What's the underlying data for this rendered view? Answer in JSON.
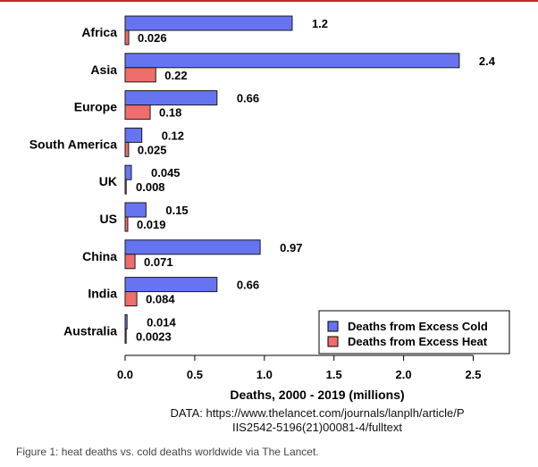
{
  "chart_data": {
    "type": "bar",
    "orientation": "horizontal",
    "categories": [
      "Africa",
      "Asia",
      "Europe",
      "South America",
      "UK",
      "US",
      "China",
      "India",
      "Australia"
    ],
    "series": [
      {
        "name": "Deaths from Excess Cold",
        "color": "#6674f2",
        "values": [
          1.2,
          2.4,
          0.66,
          0.12,
          0.045,
          0.15,
          0.97,
          0.66,
          0.014
        ],
        "labels": [
          "1.2",
          "2.4",
          "0.66",
          "0.12",
          "0.045",
          "0.15",
          "0.97",
          "0.66",
          "0.014"
        ]
      },
      {
        "name": "Deaths from Excess Heat",
        "color": "#ef6d6d",
        "values": [
          0.026,
          0.22,
          0.18,
          0.025,
          0.008,
          0.019,
          0.071,
          0.084,
          0.0023
        ],
        "labels": [
          "0.026",
          "0.22",
          "0.18",
          "0.025",
          "0.008",
          "0.019",
          "0.071",
          "0.084",
          "0.0023"
        ]
      }
    ],
    "xlabel": "Deaths, 2000 - 2019 (millions)",
    "xlim": [
      0,
      2.75
    ],
    "xticks": [
      "0.0",
      "0.5",
      "1.0",
      "1.5",
      "2.0",
      "2.5"
    ],
    "xtick_values": [
      0,
      0.5,
      1.0,
      1.5,
      2.0,
      2.5
    ],
    "legend_position": "bottom-right",
    "grid": false
  },
  "source_text": "DATA: https://www.thelancet.com/journals/lanplh/article/PIIS2542-5196(21)00081-4/fulltext",
  "caption": "Figure 1: heat deaths vs. cold deaths worldwide via The Lancet.",
  "colors": {
    "accent_rule": "#c62828"
  }
}
